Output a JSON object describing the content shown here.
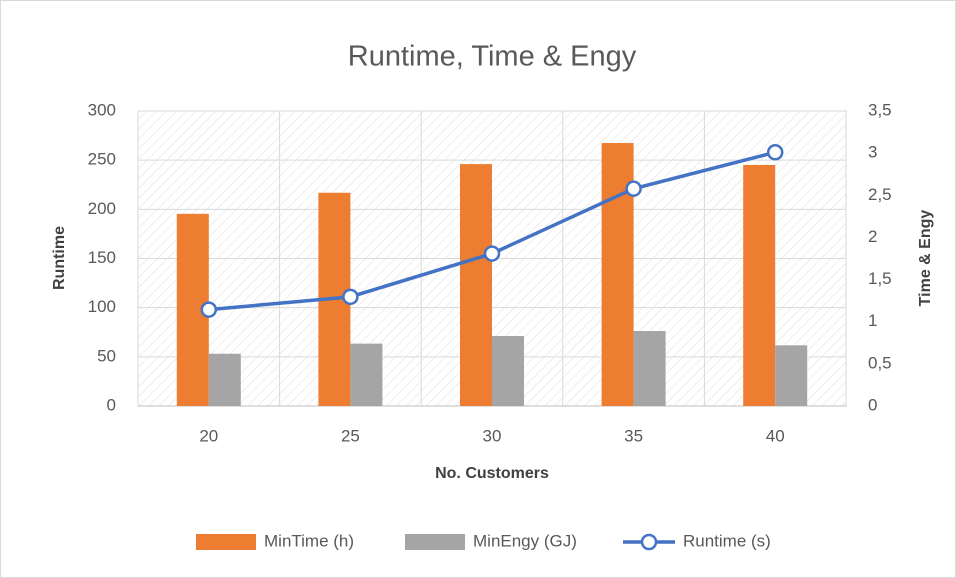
{
  "chart_data": {
    "type": "bar",
    "title": "Runtime, Time & Engy",
    "x_label": "No. Customers",
    "y_label": "Runtime",
    "y2_label": "Time & Engy",
    "categories": [
      "20",
      "25",
      "30",
      "35",
      "40"
    ],
    "series": [
      {
        "name": "MinTime (h)",
        "type": "bar",
        "color": "#ed7d31",
        "axis": "y2",
        "values": [
          2.28,
          2.53,
          2.87,
          3.12,
          2.86
        ]
      },
      {
        "name": "MinEngy (GJ)",
        "type": "bar",
        "color": "#a5a5a5",
        "axis": "y2",
        "values": [
          0.62,
          0.74,
          0.83,
          0.89,
          0.72
        ]
      },
      {
        "name": "Runtime (s)",
        "type": "line",
        "color": "#4472c4",
        "axis": "y",
        "values": [
          98,
          111,
          155,
          221,
          258
        ]
      }
    ],
    "ylim": [
      0,
      300
    ],
    "yticks": [
      0,
      50,
      100,
      150,
      200,
      250,
      300
    ],
    "y2lim": [
      0,
      3.5
    ],
    "y2ticks": [
      0,
      {
        "value": 0.5,
        "label": "0,5"
      },
      1,
      {
        "value": 1.5,
        "label": "1,5"
      },
      2,
      {
        "value": 2.5,
        "label": "2,5"
      },
      3,
      {
        "value": 3.5,
        "label": "3,5"
      }
    ],
    "grid": true,
    "legend": "bottom"
  }
}
